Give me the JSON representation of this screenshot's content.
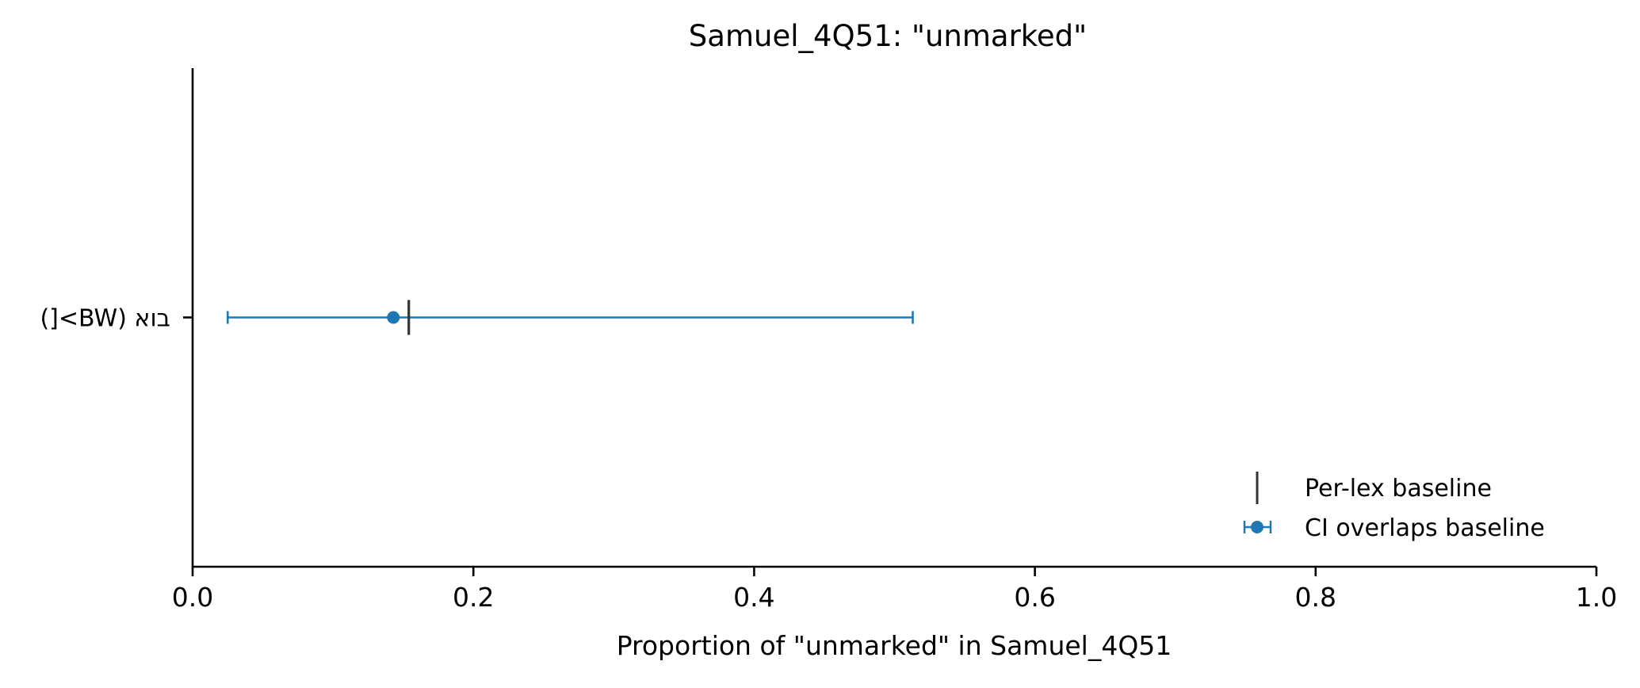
{
  "chart_data": {
    "type": "scatter",
    "title": "Samuel_4Q51: \"unmarked\"",
    "xlabel": "Proportion of \"unmarked\" in Samuel_4Q51",
    "ylabel": "",
    "xlim": [
      0.0,
      1.0
    ],
    "xticks": [
      0.0,
      0.2,
      0.4,
      0.6,
      0.8,
      1.0
    ],
    "xtick_labels": [
      "0.0",
      "0.2",
      "0.4",
      "0.6",
      "0.8",
      "1.0"
    ],
    "categories": [
      "בוא (BW>[)"
    ],
    "grid": false,
    "legend_position": "lower-right",
    "legend": [
      {
        "label": "Per-lex baseline",
        "marker": "vertical-line",
        "color": "#333333"
      },
      {
        "label": "CI overlaps baseline",
        "marker": "errorbar-point",
        "color": "#1f77b4"
      }
    ],
    "points": [
      {
        "category": "בוא (BW>[)",
        "estimate": 0.143,
        "ci_low": 0.025,
        "ci_high": 0.513,
        "baseline": 0.154
      }
    ],
    "colors": {
      "point": "#1f77b4",
      "baseline": "#333333",
      "axis": "#000000"
    }
  }
}
